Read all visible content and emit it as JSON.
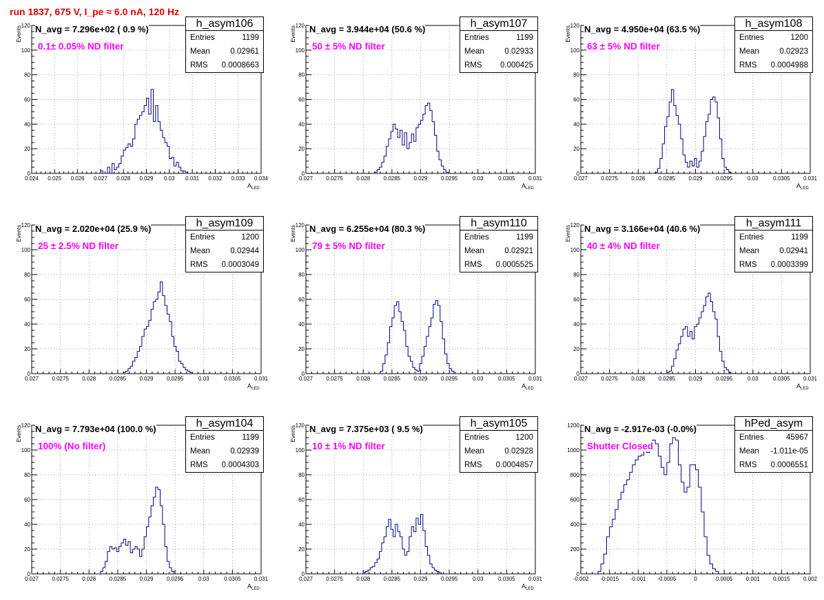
{
  "run_title": "run 1837,   675 V, I_pe ≈ 6.0 nA, 120 Hz",
  "chart_data": [
    {
      "type": "histogram",
      "title": "h_asym106",
      "n_avg": "N_avg = 7.296e+02 ( 0.9 %)",
      "annotation": "0.1± 0.05% ND filter",
      "ylabel": "Events",
      "xlabel": "A_LED",
      "xlim": [
        0.024,
        0.034
      ],
      "ylim": [
        0,
        120
      ],
      "xticks": [
        "0.024",
        "0.025",
        "0.026",
        "0.027",
        "0.028",
        "0.029",
        "0.03",
        "0.031",
        "0.032",
        "0.033",
        "0.034"
      ],
      "yticks": [
        "0",
        "20",
        "40",
        "60",
        "80",
        "100",
        "120"
      ],
      "stats": {
        "entries": "1199",
        "mean": "0.02961",
        "rms": "0.0008663"
      },
      "bins": {
        "x0": 0.027,
        "w": 0.0001,
        "counts": [
          2,
          0,
          0,
          5,
          0,
          8,
          3,
          5,
          8,
          14,
          19,
          21,
          24,
          22,
          28,
          40,
          44,
          47,
          50,
          55,
          61,
          48,
          68,
          42,
          55,
          42,
          35,
          29,
          25,
          22,
          12,
          13,
          6,
          9,
          5,
          2,
          2,
          1
        ]
      }
    },
    {
      "type": "histogram",
      "title": "h_asym107",
      "n_avg": "N_avg = 3.944e+04 (50.6 %)",
      "annotation": "50 ± 5% ND filter",
      "ylabel": "Events",
      "xlabel": "A_LED",
      "xlim": [
        0.027,
        0.031
      ],
      "ylim": [
        0,
        120
      ],
      "xticks": [
        "0.027",
        "0.0275",
        "0.028",
        "0.0285",
        "0.029",
        "0.0295",
        "0.03",
        "0.0305",
        "0.031"
      ],
      "yticks": [
        "0",
        "20",
        "40",
        "60",
        "80",
        "100",
        "120"
      ],
      "stats": {
        "entries": "1199",
        "mean": "0.02933",
        "rms": "0.000425"
      },
      "bins": {
        "x0": 0.0282,
        "w": 4e-05,
        "counts": [
          1,
          3,
          5,
          9,
          14,
          22,
          28,
          34,
          40,
          36,
          29,
          35,
          23,
          33,
          20,
          25,
          32,
          26,
          37,
          40,
          43,
          48,
          55,
          57,
          51,
          42,
          31,
          18,
          11,
          6,
          3,
          1
        ]
      }
    },
    {
      "type": "histogram",
      "title": "h_asym108",
      "n_avg": "N_avg = 4.950e+04 (63.5 %)",
      "annotation": "63 ± 5% ND filter",
      "ylabel": "Events",
      "xlabel": "A_LED",
      "xlim": [
        0.027,
        0.031
      ],
      "ylim": [
        0,
        120
      ],
      "xticks": [
        "0.027",
        "0.0275",
        "0.028",
        "0.0285",
        "0.029",
        "0.0295",
        "0.03",
        "0.0305",
        "0.031"
      ],
      "yticks": [
        "0",
        "20",
        "40",
        "60",
        "80",
        "100",
        "120"
      ],
      "stats": {
        "entries": "1200",
        "mean": "0.02923",
        "rms": "0.0004988"
      },
      "bins": {
        "x0": 0.0283,
        "w": 4e-05,
        "counts": [
          1,
          4,
          12,
          24,
          38,
          46,
          58,
          68,
          55,
          47,
          40,
          28,
          15,
          9,
          5,
          10,
          6,
          12,
          5,
          10,
          18,
          30,
          42,
          48,
          60,
          62,
          58,
          45,
          28,
          12,
          5,
          3,
          1
        ]
      }
    },
    {
      "type": "histogram",
      "title": "h_asym109",
      "n_avg": "N_avg = 2.020e+04 (25.9 %)",
      "annotation": "25 ± 2.5% ND filter",
      "ylabel": "Events",
      "xlabel": "A_LED",
      "xlim": [
        0.027,
        0.031
      ],
      "ylim": [
        0,
        120
      ],
      "xticks": [
        "0.027",
        "0.0275",
        "0.028",
        "0.0285",
        "0.029",
        "0.0295",
        "0.03",
        "0.0305",
        "0.031"
      ],
      "yticks": [
        "0",
        "20",
        "40",
        "60",
        "80",
        "100",
        "120"
      ],
      "stats": {
        "entries": "1200",
        "mean": "0.02944",
        "rms": "0.0003049"
      },
      "bins": {
        "x0": 0.0286,
        "w": 4e-05,
        "counts": [
          1,
          2,
          4,
          6,
          10,
          13,
          18,
          22,
          30,
          36,
          38,
          43,
          52,
          58,
          60,
          66,
          74,
          63,
          55,
          48,
          42,
          30,
          22,
          18,
          10,
          8,
          5,
          3,
          2,
          1
        ]
      }
    },
    {
      "type": "histogram",
      "title": "h_asym110",
      "n_avg": "N_avg = 6.255e+04 (80.3 %)",
      "annotation": "79 ± 5% ND filter",
      "ylabel": "Events",
      "xlabel": "A_LED",
      "xlim": [
        0.027,
        0.031
      ],
      "ylim": [
        0,
        120
      ],
      "xticks": [
        "0.027",
        "0.0275",
        "0.028",
        "0.0285",
        "0.029",
        "0.0295",
        "0.03",
        "0.0305",
        "0.031"
      ],
      "yticks": [
        "0",
        "20",
        "40",
        "60",
        "80",
        "100",
        "120"
      ],
      "stats": {
        "entries": "1199",
        "mean": "0.02921",
        "rms": "0.0005525"
      },
      "bins": {
        "x0": 0.0283,
        "w": 4e-05,
        "counts": [
          2,
          8,
          15,
          25,
          38,
          45,
          55,
          58,
          50,
          42,
          35,
          22,
          14,
          10,
          5,
          3,
          2,
          8,
          14,
          22,
          30,
          38,
          45,
          56,
          59,
          55,
          42,
          28,
          16,
          8,
          4,
          2
        ]
      }
    },
    {
      "type": "histogram",
      "title": "h_asym111",
      "n_avg": "N_avg = 3.166e+04 (40.6 %)",
      "annotation": "40 ± 4% ND filter",
      "ylabel": "Events",
      "xlabel": "A_LED",
      "xlim": [
        0.027,
        0.031
      ],
      "ylim": [
        0,
        120
      ],
      "xticks": [
        "0.027",
        "0.0275",
        "0.028",
        "0.0285",
        "0.029",
        "0.0295",
        "0.03",
        "0.0305",
        "0.031"
      ],
      "yticks": [
        "0",
        "20",
        "40",
        "60",
        "80",
        "100",
        "120"
      ],
      "stats": {
        "entries": "1199",
        "mean": "0.02941",
        "rms": "0.0003399"
      },
      "bins": {
        "x0": 0.0285,
        "w": 4e-05,
        "counts": [
          1,
          2,
          6,
          12,
          19,
          24,
          30,
          36,
          38,
          30,
          34,
          28,
          38,
          40,
          45,
          50,
          55,
          62,
          65,
          58,
          50,
          44,
          30,
          18,
          10,
          5,
          3,
          1
        ]
      }
    },
    {
      "type": "histogram",
      "title": "h_asym104",
      "n_avg": "N_avg = 7.793e+04 (100.0 %)",
      "annotation": "100% (No filter)",
      "ylabel": "Events",
      "xlabel": "A_LED",
      "xlim": [
        0.027,
        0.031
      ],
      "ylim": [
        0,
        120
      ],
      "xticks": [
        "0.027",
        "0.0275",
        "0.028",
        "0.0285",
        "0.029",
        "0.0295",
        "0.03",
        "0.0305",
        "0.031"
      ],
      "yticks": [
        "0",
        "20",
        "40",
        "60",
        "80",
        "100",
        "120"
      ],
      "stats": {
        "entries": "1199",
        "mean": "0.02939",
        "rms": "0.0004303"
      },
      "bins": {
        "x0": 0.0282,
        "w": 4e-05,
        "counts": [
          2,
          5,
          10,
          18,
          22,
          20,
          21,
          18,
          22,
          25,
          28,
          23,
          26,
          17,
          20,
          22,
          20,
          14,
          20,
          30,
          38,
          46,
          55,
          62,
          70,
          68,
          55,
          40,
          22,
          10,
          5,
          2
        ]
      }
    },
    {
      "type": "histogram",
      "title": "h_asym105",
      "n_avg": "N_avg = 7.375e+03 ( 9.5 %)",
      "annotation": "10 ± 1% ND filter",
      "ylabel": "Events",
      "xlabel": "A_LED",
      "xlim": [
        0.027,
        0.031
      ],
      "ylim": [
        0,
        120
      ],
      "xticks": [
        "0.027",
        "0.0275",
        "0.028",
        "0.0285",
        "0.029",
        "0.0295",
        "0.03",
        "0.0305",
        "0.031"
      ],
      "yticks": [
        "0",
        "20",
        "40",
        "60",
        "80",
        "100",
        "120"
      ],
      "stats": {
        "entries": "1200",
        "mean": "0.02928",
        "rms": "0.0004857"
      },
      "bins": {
        "x0": 0.028,
        "w": 4e-05,
        "counts": [
          1,
          2,
          3,
          5,
          6,
          9,
          12,
          18,
          25,
          30,
          38,
          44,
          36,
          30,
          40,
          34,
          30,
          20,
          15,
          18,
          30,
          38,
          34,
          45,
          40,
          48,
          35,
          22,
          15,
          8,
          5,
          3,
          2,
          1
        ]
      }
    },
    {
      "type": "histogram",
      "title": "hPed_asym",
      "n_avg": "N_avg = -2.917e-03 (-0.0%)",
      "annotation": "Shutter Closed",
      "ylabel": "",
      "xlabel": "",
      "xlim": [
        -0.002,
        0.002
      ],
      "ylim": [
        0,
        1200
      ],
      "xticks": [
        "-0.002",
        "-0.0015",
        "-0.001",
        "-0.0005",
        "0",
        "0.0005",
        "0.001",
        "0.0015",
        "0.002"
      ],
      "yticks": [
        "0",
        "200",
        "400",
        "600",
        "800",
        "1000",
        "1200"
      ],
      "stats": {
        "entries": "45967",
        "mean": "-1.011e-05",
        "rms": "0.0006551"
      },
      "bins": {
        "x0": -0.0017,
        "w": 5e-05,
        "counts": [
          20,
          80,
          160,
          300,
          380,
          440,
          520,
          600,
          660,
          720,
          760,
          820,
          880,
          920,
          950,
          960,
          1000,
          980,
          1020,
          1080,
          1050,
          950,
          860,
          800,
          900,
          1050,
          1100,
          1080,
          880,
          740,
          660,
          700,
          880,
          880,
          840,
          700,
          500,
          300,
          150,
          80,
          40,
          20
        ]
      }
    }
  ]
}
